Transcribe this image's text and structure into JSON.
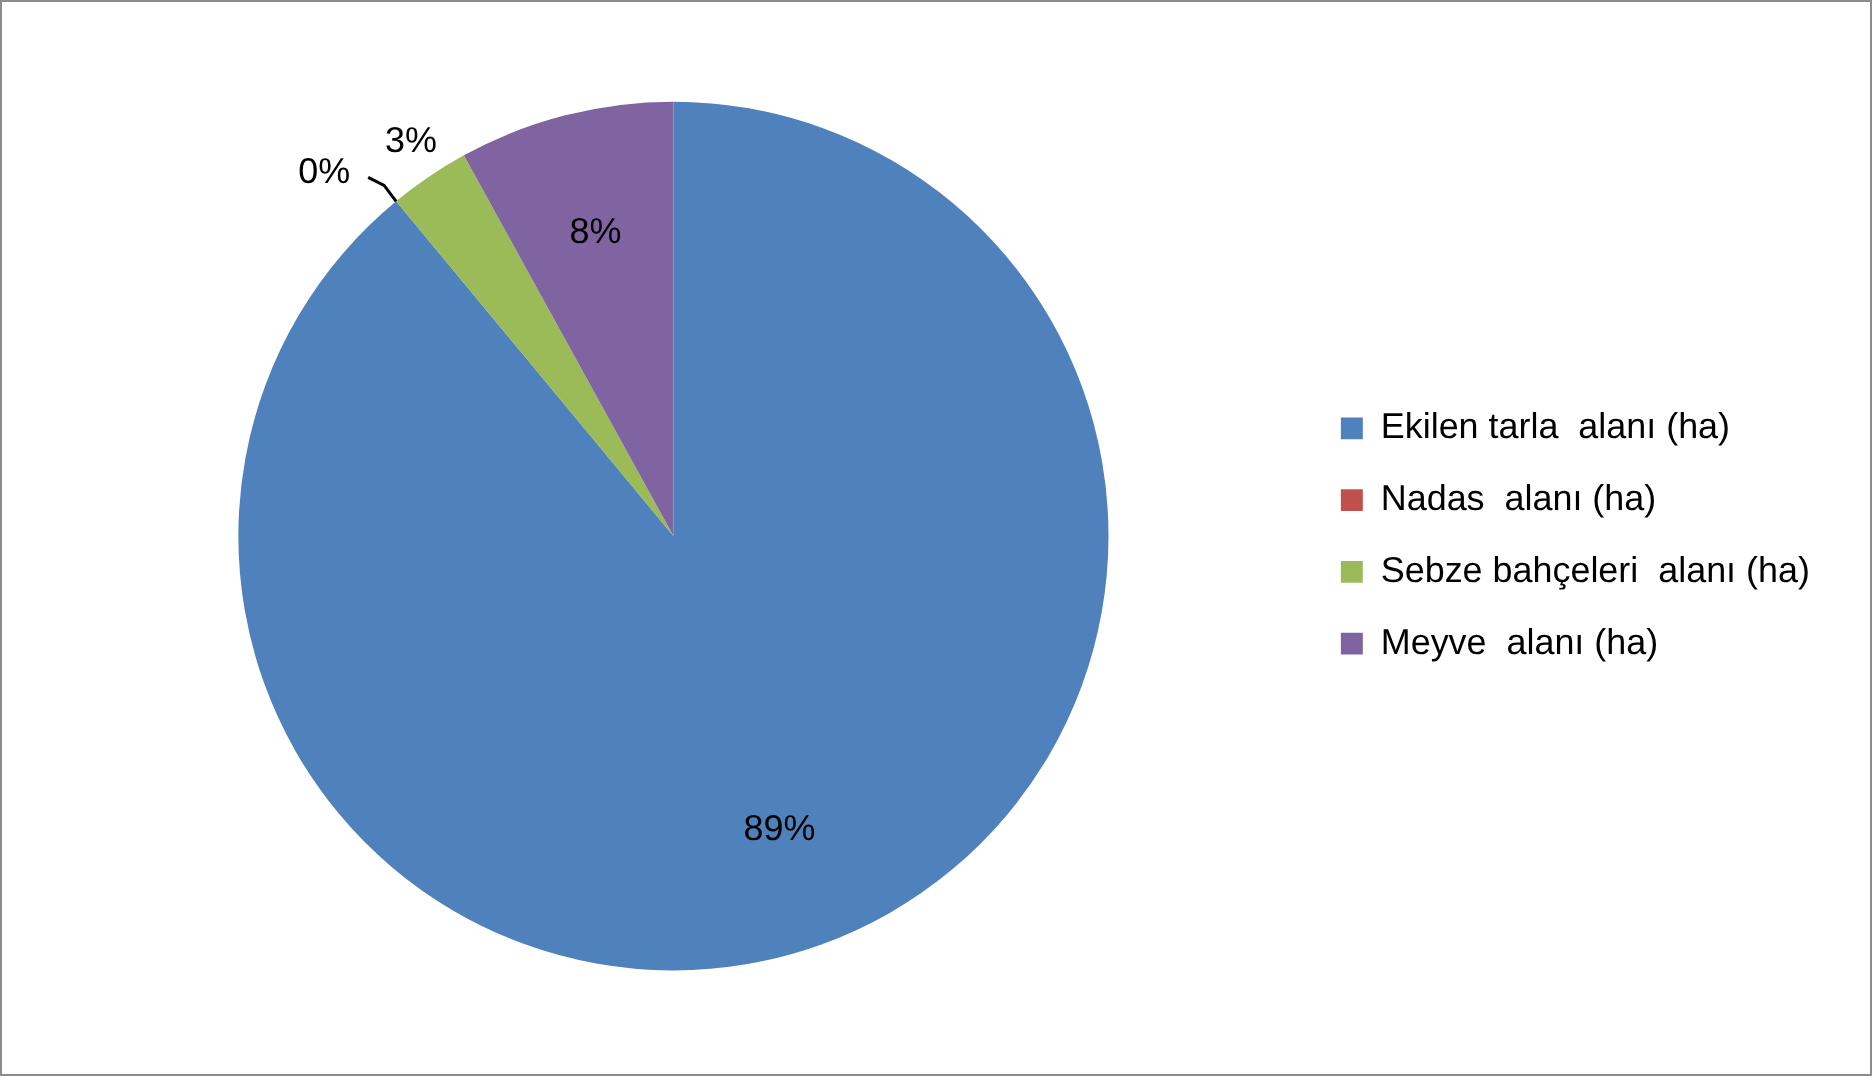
{
  "chart_data": {
    "type": "pie",
    "categories": [
      "Ekilen tarla  alanı (ha)",
      "Nadas  alanı (ha)",
      "Sebze bahçeleri  alanı (ha)",
      "Meyve  alanı (ha)"
    ],
    "values": [
      89,
      0,
      3,
      8
    ],
    "colors": [
      "#4f81bd",
      "#c0504d",
      "#9bbb59",
      "#8064a2"
    ],
    "value_labels": [
      "89%",
      "0%",
      "3%",
      "8%"
    ],
    "legend": "right"
  }
}
